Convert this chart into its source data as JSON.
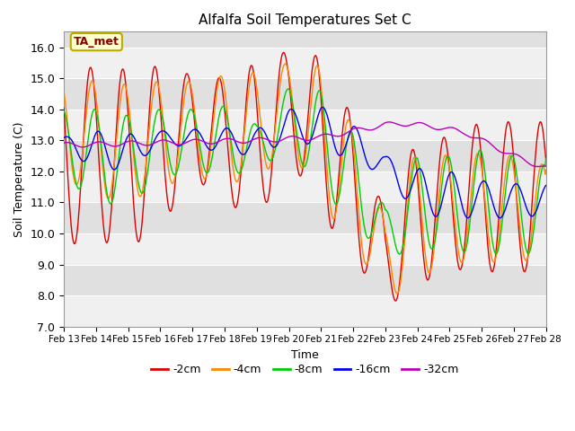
{
  "title": "Alfalfa Soil Temperatures Set C",
  "xlabel": "Time",
  "ylabel": "Soil Temperature (C)",
  "ylim": [
    7.0,
    16.5
  ],
  "background_color": "#ffffff",
  "plot_bg_color": "#e0e0e0",
  "grid_color": "#ffffff",
  "colors": {
    "-2cm": "#dd0000",
    "-4cm": "#ff8800",
    "-8cm": "#00cc00",
    "-16cm": "#0000ee",
    "-32cm": "#bb00bb"
  },
  "legend_labels": [
    "-2cm",
    "-4cm",
    "-8cm",
    "-16cm",
    "-32cm"
  ],
  "annotation_text": "TA_met",
  "annotation_bg": "#ffffcc",
  "annotation_edge": "#bbaa00",
  "tick_labels": [
    "Feb 13",
    "Feb 14",
    "Feb 15",
    "Feb 16",
    "Feb 17",
    "Feb 18",
    "Feb 19",
    "Feb 20",
    "Feb 21",
    "Feb 22",
    "Feb 23",
    "Feb 24",
    "Feb 25",
    "Feb 26",
    "Feb 27",
    "Feb 28"
  ],
  "yticks": [
    7.0,
    8.0,
    9.0,
    10.0,
    11.0,
    12.0,
    13.0,
    14.0,
    15.0,
    16.0
  ]
}
